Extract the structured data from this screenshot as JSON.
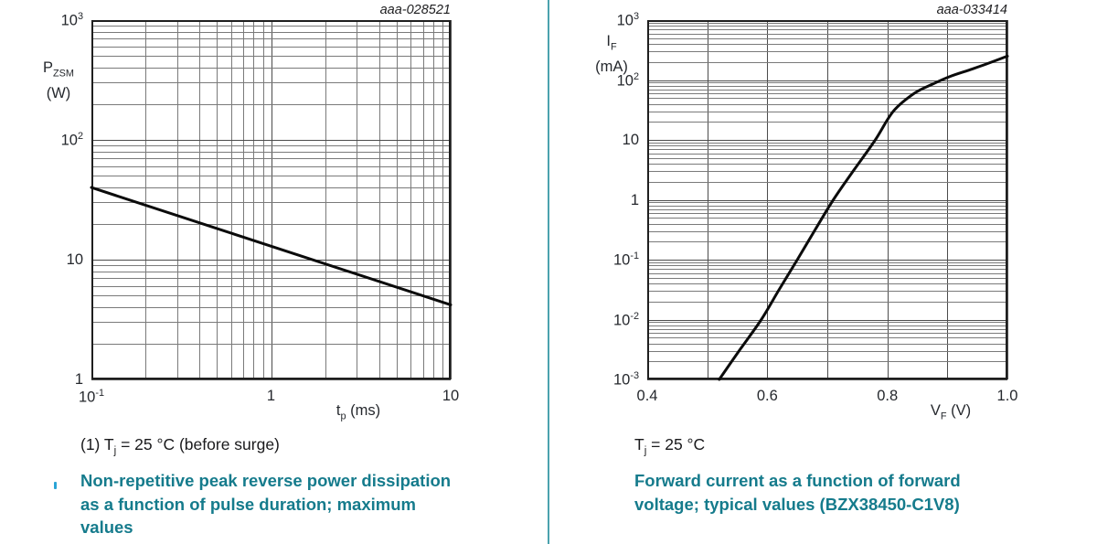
{
  "page": {
    "background": "#ffffff",
    "divider_color": "#4ba2ae",
    "accent_teal": "#157b8c",
    "bullet_mark_color": "#2aa4d6",
    "text_color": "#1a1a1c"
  },
  "chart_data": [
    {
      "type": "line",
      "code": "aaa-028521",
      "x_axis": {
        "scale": "log",
        "min": 0.1,
        "max": 10,
        "title": "t_{p} (ms)",
        "ticks": [
          {
            "v": 0.1,
            "label": "10^{-1}"
          },
          {
            "v": 1,
            "label": "1"
          },
          {
            "v": 10,
            "label": "10"
          }
        ]
      },
      "y_axis": {
        "scale": "log",
        "min": 1,
        "max": 1000,
        "title_lines": [
          "P_{ZSM}",
          "(W)"
        ],
        "ticks": [
          {
            "v": 1000,
            "label": "10^{3}"
          },
          {
            "v": 100,
            "label": "10^{2}"
          },
          {
            "v": 10,
            "label": "10"
          },
          {
            "v": 1,
            "label": "1"
          }
        ]
      },
      "series": [
        {
          "points": [
            [
              0.1,
              40
            ],
            [
              10,
              4.2
            ]
          ]
        }
      ],
      "note": "(1) T_{j} = 25 °C (before surge)",
      "caption_lines": [
        "Non-repetitive peak reverse power dissipation",
        "as a function of pulse duration; maximum",
        "values"
      ]
    },
    {
      "type": "line",
      "code": "aaa-033414",
      "x_axis": {
        "scale": "linear",
        "min": 0.4,
        "max": 1.0,
        "grid_step": 0.1,
        "title": "V_{F} (V)",
        "ticks": [
          {
            "v": 0.4,
            "label": "0.4"
          },
          {
            "v": 0.6,
            "label": "0.6"
          },
          {
            "v": 0.8,
            "label": "0.8"
          },
          {
            "v": 1.0,
            "label": "1.0"
          }
        ]
      },
      "y_axis": {
        "scale": "log",
        "min": 0.001,
        "max": 1000,
        "title_lines": [
          "I_{F}",
          "(mA)"
        ],
        "ticks": [
          {
            "v": 1000,
            "label": "10^{3}"
          },
          {
            "v": 100,
            "label": "10^{2}"
          },
          {
            "v": 10,
            "label": "10"
          },
          {
            "v": 1,
            "label": "1"
          },
          {
            "v": 0.1,
            "label": "10^{-1}"
          },
          {
            "v": 0.01,
            "label": "10^{-2}"
          },
          {
            "v": 0.001,
            "label": "10^{-3}"
          }
        ]
      },
      "series": [
        {
          "points": [
            [
              0.52,
              0.001
            ],
            [
              0.555,
              0.0032
            ],
            [
              0.59,
              0.01
            ],
            [
              0.62,
              0.032
            ],
            [
              0.65,
              0.1
            ],
            [
              0.68,
              0.32
            ],
            [
              0.71,
              1
            ],
            [
              0.745,
              3.2
            ],
            [
              0.78,
              10
            ],
            [
              0.81,
              30
            ],
            [
              0.845,
              60
            ],
            [
              0.875,
              85
            ],
            [
              0.905,
              115
            ],
            [
              0.935,
              145
            ],
            [
              0.965,
              185
            ],
            [
              1.0,
              250
            ]
          ]
        }
      ],
      "note": "T_{j} = 25 °C",
      "caption_lines": [
        "Forward current as a function of forward",
        "voltage; typical values (BZX38450-C1V8)"
      ]
    }
  ]
}
